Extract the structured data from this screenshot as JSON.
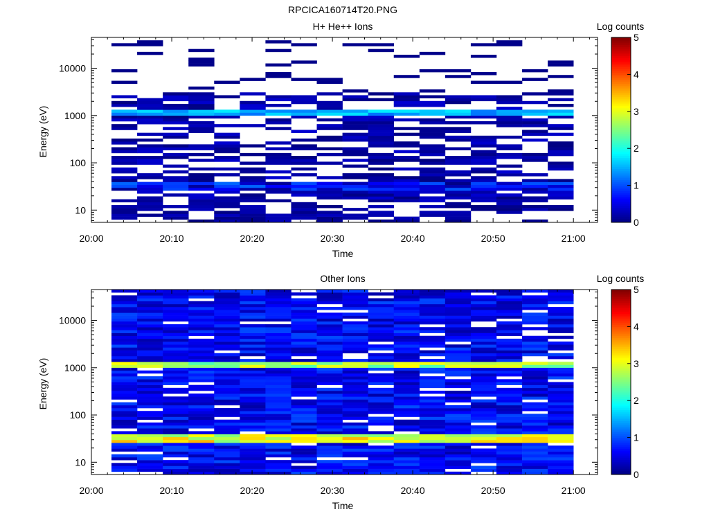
{
  "figure_title": "RPCICA160714T20.PNG",
  "chart_data": [
    {
      "type": "heatmap",
      "title": "H+ He++ Ions",
      "xlabel": "Time",
      "ylabel": "Energy (eV)",
      "x_ticks": [
        "20:00",
        "20:10",
        "20:20",
        "20:30",
        "20:40",
        "20:50",
        "21:00"
      ],
      "y_ticks": [
        "10",
        "100",
        "1000",
        "10000"
      ],
      "y_scale": "log",
      "ylim_eV": [
        5.5,
        45000
      ],
      "time_range": [
        "20:00",
        "21:03"
      ],
      "data_time_range": [
        "20:02:30",
        "21:00"
      ],
      "colorbar_label": "Log counts",
      "colorbar_ticks": [
        "0",
        "1",
        "2",
        "3",
        "4",
        "5"
      ],
      "colorbar_range": [
        0,
        5
      ],
      "colormap": "jet",
      "time_bins": 18,
      "description_of_features": {
        "dense_band_eV": [
          1000,
          1400
        ],
        "dense_band_log_counts": 1.5,
        "low_energy_band_eV": [
          25,
          40
        ],
        "low_energy_band_log_counts": 1.2,
        "sparse_above_eV": 3000
      }
    },
    {
      "type": "heatmap",
      "title": "Other Ions",
      "xlabel": "Time",
      "ylabel": "Energy (eV)",
      "x_ticks": [
        "20:00",
        "20:10",
        "20:20",
        "20:30",
        "20:40",
        "20:50",
        "21:00"
      ],
      "y_ticks": [
        "10",
        "100",
        "1000",
        "10000"
      ],
      "y_scale": "log",
      "ylim_eV": [
        5.5,
        45000
      ],
      "time_range": [
        "20:00",
        "21:03"
      ],
      "data_time_range": [
        "20:02:30",
        "21:00"
      ],
      "colorbar_label": "Log counts",
      "colorbar_ticks": [
        "0",
        "1",
        "2",
        "3",
        "4",
        "5"
      ],
      "colorbar_range": [
        0,
        5
      ],
      "colormap": "jet",
      "time_bins": 18,
      "description_of_features": {
        "high_band_eV": [
          1000,
          1400
        ],
        "high_band_log_counts": 2.7,
        "low_band_eV": [
          25,
          40
        ],
        "low_band_log_counts": 3.0,
        "background_log_counts": 0.6
      }
    }
  ]
}
